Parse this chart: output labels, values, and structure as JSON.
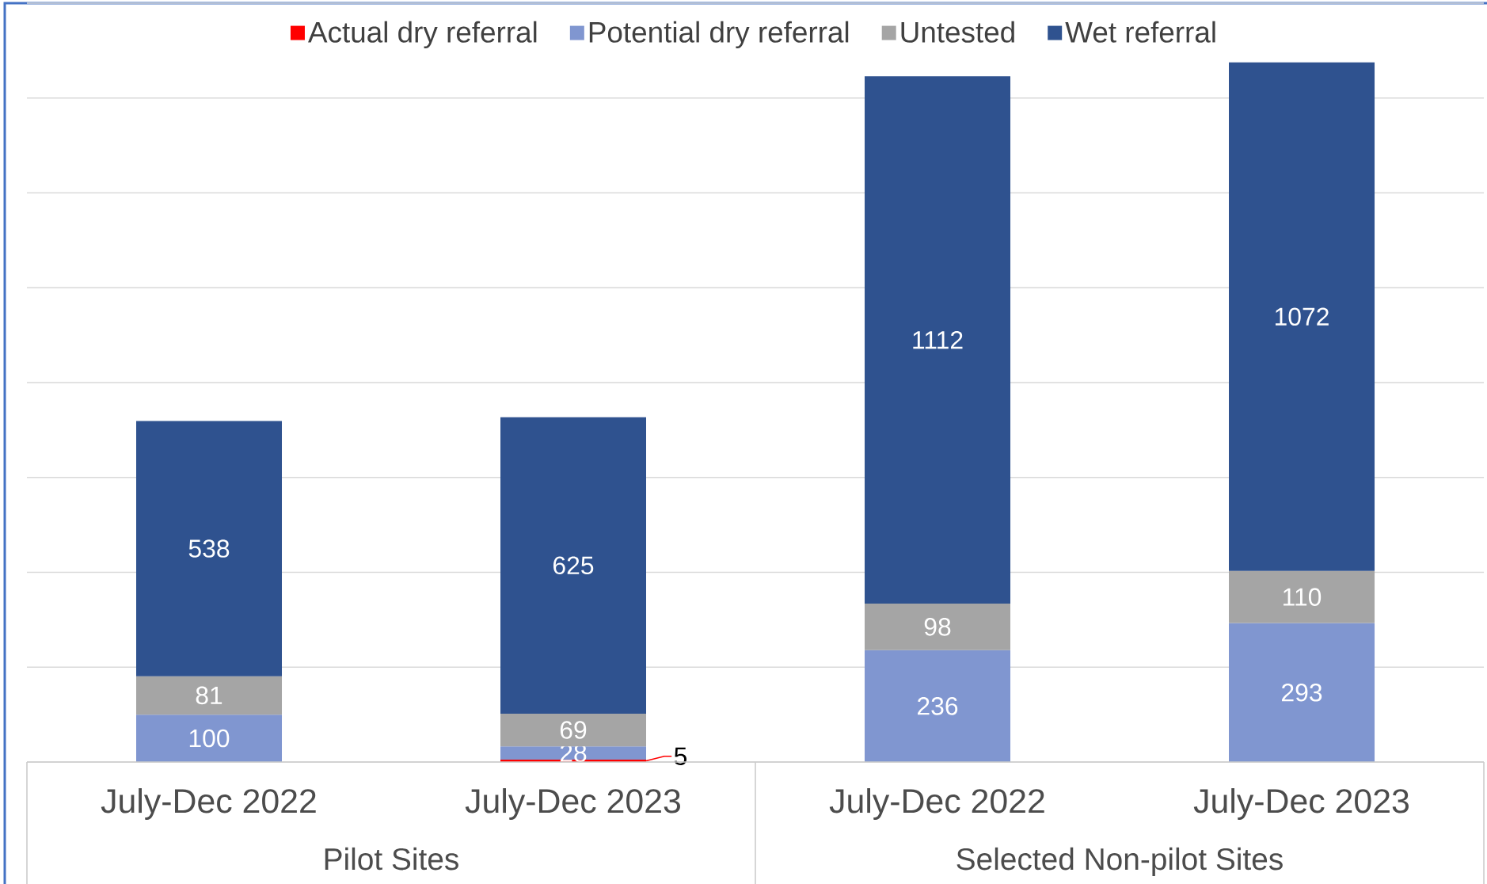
{
  "chart_data": {
    "type": "bar",
    "stacked": true,
    "categories": [
      "July-Dec 2022",
      "July-Dec 2023",
      "July-Dec 2022",
      "July-Dec 2023"
    ],
    "series": [
      {
        "name": "Actual dry referral",
        "color": "#ff0000",
        "values": [
          null,
          5,
          null,
          null
        ]
      },
      {
        "name": "Potential dry referral",
        "color": "#8096d0",
        "values": [
          100,
          28,
          236,
          293
        ]
      },
      {
        "name": "Untested",
        "color": "#a5a5a5",
        "values": [
          81,
          69,
          98,
          110
        ]
      },
      {
        "name": "Wet referral",
        "color": "#2f528f",
        "values": [
          538,
          625,
          1112,
          1072
        ]
      }
    ],
    "annotations": [
      "Pilot Sites",
      "Selected Non-pilot Sites"
    ],
    "ylim": [
      0,
      1600
    ],
    "yticks": [
      {
        "value": 0,
        "label": null
      },
      {
        "value": 200,
        "label": null
      },
      {
        "value": 400,
        "label": null
      },
      {
        "value": 600,
        "label": null
      },
      {
        "value": 800,
        "label": null
      },
      {
        "value": 1000,
        "label": null
      },
      {
        "value": 1200,
        "label": null
      },
      {
        "value": 1400,
        "label": null
      },
      {
        "value": 1600,
        "label": null
      }
    ],
    "tick_labels": "x",
    "grid": "y",
    "legend": "top",
    "data_labels": true
  }
}
